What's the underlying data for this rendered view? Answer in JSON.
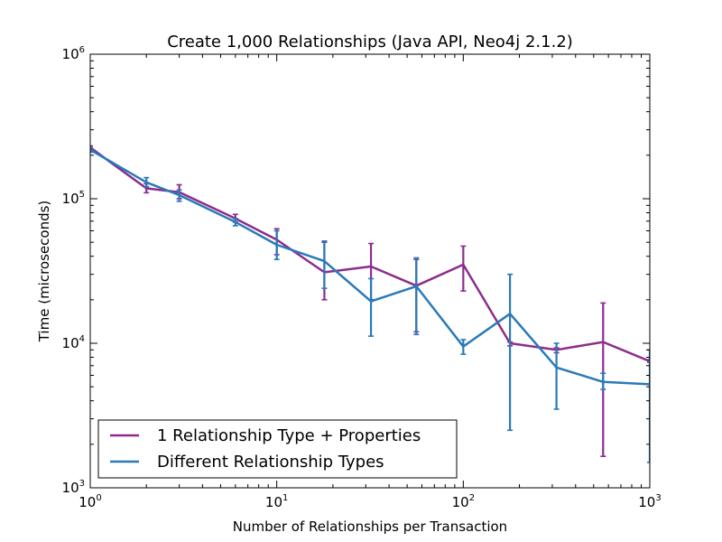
{
  "chart_data": {
    "type": "line",
    "title": "Create 1,000 Relationships (Java API, Neo4j 2.1.2)",
    "xlabel": "Number of Relationships per Transaction",
    "ylabel": "Time (microseconds)",
    "xscale": "log",
    "yscale": "log",
    "xlim": [
      1,
      1000
    ],
    "ylim": [
      1000,
      1000000
    ],
    "x_ticks": [
      {
        "base": "10",
        "exp": "0",
        "value": 1
      },
      {
        "base": "10",
        "exp": "1",
        "value": 10
      },
      {
        "base": "10",
        "exp": "2",
        "value": 100
      },
      {
        "base": "10",
        "exp": "3",
        "value": 1000
      }
    ],
    "y_ticks": [
      {
        "base": "10",
        "exp": "3",
        "value": 1000
      },
      {
        "base": "10",
        "exp": "4",
        "value": 10000
      },
      {
        "base": "10",
        "exp": "5",
        "value": 100000
      },
      {
        "base": "10",
        "exp": "6",
        "value": 1000000
      }
    ],
    "grid": false,
    "legend_position": "lower-left",
    "series": [
      {
        "name": "1 Relationship Type + Properties",
        "color": "#8c2d8c",
        "x": [
          1,
          2,
          3,
          6,
          10,
          18,
          32,
          56,
          100,
          178,
          316,
          562,
          1000
        ],
        "y": [
          226000,
          118000,
          111000,
          73000,
          52000,
          31000,
          34000,
          25000,
          35000,
          10000,
          9000,
          10200,
          7500
        ],
        "err_low": [
          220000,
          110000,
          100000,
          69000,
          41000,
          20000,
          20000,
          12000,
          23000,
          9600,
          8600,
          1650,
          7400
        ],
        "err_high": [
          232000,
          127000,
          125000,
          78000,
          62000,
          50000,
          49000,
          38000,
          47000,
          10200,
          9300,
          19000,
          7700
        ]
      },
      {
        "name": "Different Relationship Types",
        "color": "#2a7ab8",
        "x": [
          1,
          2,
          3,
          6,
          10,
          18,
          32,
          56,
          100,
          178,
          316,
          562,
          1000
        ],
        "y": [
          218000,
          130000,
          106000,
          69000,
          48000,
          37000,
          19500,
          24800,
          9500,
          16000,
          6800,
          5400,
          5200
        ],
        "err_low": [
          210000,
          121000,
          96000,
          65000,
          38000,
          24000,
          11200,
          11500,
          8400,
          2500,
          3500,
          4800,
          1500
        ],
        "err_high": [
          226000,
          140000,
          115000,
          73000,
          60000,
          51000,
          28000,
          39000,
          10600,
          30000,
          10000,
          6200,
          9000
        ]
      }
    ]
  }
}
